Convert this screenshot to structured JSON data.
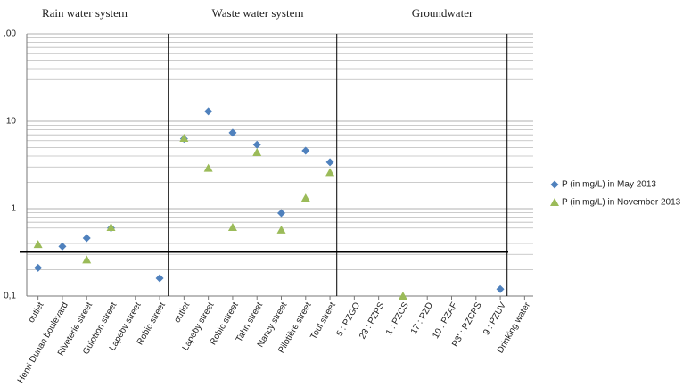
{
  "chart_data": {
    "type": "scatter",
    "groups": [
      "Rain water system",
      "Waste water system",
      "Groundwater"
    ],
    "categories": [
      "outlet",
      "Henri Dunan boulevard",
      "Riveterie street",
      "Guiotton street",
      "Lapeby street",
      "Robic street",
      "outlet",
      "Lapeby street",
      "Robic street",
      "Tahn street",
      "Nancy street",
      "Pilotière street",
      "Toul street",
      "5 : PZGO",
      "23 : PZPS",
      "1 : PZCS",
      "17 : PZD",
      "10 : PZAF",
      "P3' : PZCPS",
      "9 : PZUV",
      "Drinking water"
    ],
    "series": [
      {
        "name": "P (in mg/L) in May 2013",
        "color": "#4f81bd",
        "marker": "diamond",
        "values": [
          0.21,
          0.37,
          0.46,
          0.6,
          null,
          0.16,
          6.3,
          13,
          7.4,
          5.4,
          0.89,
          4.6,
          3.4,
          null,
          null,
          null,
          null,
          null,
          null,
          0.12,
          null
        ]
      },
      {
        "name": "P (in mg/L) in November 2013",
        "color": "#9bbb59",
        "marker": "triangle",
        "values": [
          0.39,
          null,
          0.26,
          0.61,
          null,
          null,
          6.4,
          2.9,
          0.61,
          4.4,
          0.57,
          1.32,
          2.6,
          null,
          null,
          0.1,
          null,
          null,
          null,
          null,
          null
        ]
      }
    ],
    "reference_line": 0.32,
    "log_y": true,
    "ylim": [
      0.1,
      100
    ],
    "yticks": [
      {
        "value": 0.1,
        "label": "0,1"
      },
      1,
      10,
      {
        "value": 100,
        "label": ".00"
      }
    ],
    "yminor": [
      0.2,
      0.3,
      0.4,
      0.5,
      0.6,
      0.7,
      0.8,
      0.9,
      2,
      3,
      4,
      5,
      6,
      7,
      8,
      9,
      20,
      30,
      40,
      50,
      60,
      70,
      80,
      90
    ],
    "grid": true,
    "legend": "right"
  }
}
